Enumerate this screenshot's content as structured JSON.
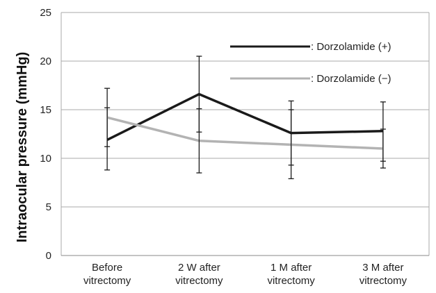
{
  "chart_data": {
    "type": "line",
    "categories": [
      [
        "Before",
        "vitrectomy"
      ],
      [
        "2 W after",
        "vitrectomy"
      ],
      [
        "1 M after",
        "vitrectomy"
      ],
      [
        "3 M after",
        "vitrectomy"
      ]
    ],
    "ylabel": "Intraocular pressure (mmHg)",
    "xlabel": "",
    "ylim": [
      0,
      25
    ],
    "yticks": [
      0,
      5,
      10,
      15,
      20,
      25
    ],
    "grid": true,
    "legend_position": "top-right",
    "series": [
      {
        "name": ": Dorzolamide (+)",
        "color": "#1a1a1a",
        "values": [
          11.9,
          16.6,
          12.6,
          12.8
        ],
        "error_low": [
          8.8,
          12.7,
          9.3,
          9.7
        ],
        "error_high": [
          15.2,
          20.5,
          15.9,
          15.8
        ]
      },
      {
        "name": ": Dorzolamide (−)",
        "color": "#b3b3b3",
        "values": [
          14.2,
          11.8,
          11.4,
          11.0
        ],
        "error_low": [
          11.2,
          8.5,
          7.9,
          9.0
        ],
        "error_high": [
          17.2,
          15.1,
          15.0,
          13.0
        ]
      }
    ]
  }
}
